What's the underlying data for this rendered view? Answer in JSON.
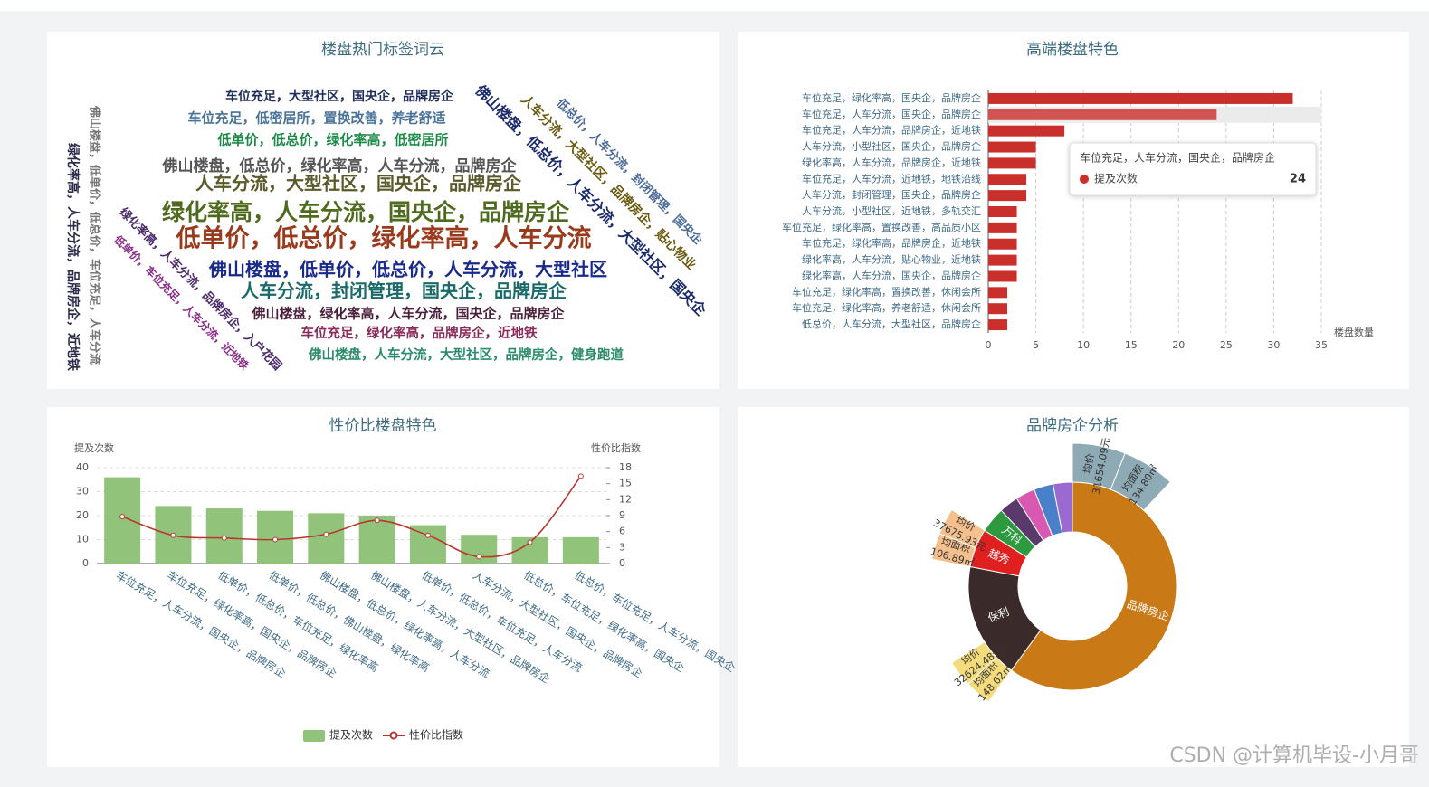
{
  "watermark": "CSDN @计算机毕设-小月哥",
  "chart_data": [
    {
      "type": "wordcloud",
      "title": "楼盘热门标签词云",
      "words": [
        {
          "text": "车位充足，大型社区，国央企，品牌房企",
          "color": "#1f2d5a"
        },
        {
          "text": "车位充足，低密居所，置换改善，养老舒适",
          "color": "#4a7399"
        },
        {
          "text": "低单价，低总价，绿化率高，低密居所",
          "color": "#1e8a4a"
        },
        {
          "text": "佛山楼盘，低总价，绿化率高，人车分流，品牌房企",
          "color": "#555555"
        },
        {
          "text": "人车分流，大型社区，国央企，品牌房企",
          "color": "#5a5a2a"
        },
        {
          "text": "绿化率高，人车分流，国央企，品牌房企",
          "color": "#4f6b1f"
        },
        {
          "text": "低单价，低总价，绿化率高，人车分流",
          "color": "#9a3a1c"
        },
        {
          "text": "佛山楼盘，低单价，低总价，人车分流，大型社区",
          "color": "#1a2a8a"
        },
        {
          "text": "人车分流，封闭管理，国央企，品牌房企",
          "color": "#1a6a6a"
        },
        {
          "text": "佛山楼盘，绿化率高，人车分流，国央企，品牌房企",
          "color": "#4a1f3a"
        },
        {
          "text": "车位充足，绿化率高，品牌房企，近地铁",
          "color": "#8a2a5a"
        },
        {
          "text": "佛山楼盘，人车分流，大型社区，品牌房企，健身跑道",
          "color": "#2a8a6a"
        },
        {
          "text": "佛山楼盘，低单价，低总价，车位充足，人车分流",
          "color": "#777777"
        },
        {
          "text": "绿化率高，人车分流，品牌房企，近地铁",
          "color": "#2a2a4a"
        },
        {
          "text": "绿化率高，人车分流，品牌房企，入户花园",
          "color": "#4a2a6a"
        },
        {
          "text": "低单价，车位充足，人车分流，近地铁",
          "color": "#8a2a8a"
        },
        {
          "text": "佛山楼盘，低总价，人车分流，大型社区，国央企",
          "color": "#1a2a6a"
        },
        {
          "text": "人车分流，大型社区，品牌房企，贴心物业",
          "color": "#6a5a10"
        },
        {
          "text": "低总价，人车分流，封闭管理，国央企",
          "color": "#4a6a9a"
        }
      ]
    },
    {
      "type": "hbar",
      "title": "高端楼盘特色",
      "categories": [
        "车位充足，绿化率高，国央企，品牌房企",
        "车位充足，人车分流，国央企，品牌房企",
        "车位充足，人车分流，品牌房企，近地铁",
        "人车分流，小型社区，国央企，品牌房企",
        "绿化率高，人车分流，品牌房企，近地铁",
        "车位充足，人车分流，近地铁，地铁沿线",
        "人车分流，封闭管理，国央企，品牌房企",
        "人车分流，小型社区，近地铁，多轨交汇",
        "车位充足，绿化率高，置换改善，高品质小区",
        "车位充足，绿化率高，品牌房企，近地铁",
        "绿化率高，人车分流，贴心物业，近地铁",
        "绿化率高，人车分流，国央企，品牌房企",
        "车位充足，绿化率高，置换改善，休闲会所",
        "车位充足，绿化率高，养老舒适，休闲会所",
        "低总价，人车分流，大型社区，品牌房企"
      ],
      "series": [
        {
          "name": "提及次数",
          "color": "#c9302c",
          "values": [
            32,
            24,
            8,
            5,
            5,
            4,
            4,
            3,
            3,
            3,
            3,
            3,
            2,
            2,
            2
          ]
        }
      ],
      "xlim": [
        0,
        35
      ],
      "xticks": [
        0,
        5,
        10,
        15,
        20,
        25,
        30,
        35
      ],
      "xlabel": "楼盘数量",
      "grid": true
    },
    {
      "type": "barline",
      "title": "性价比楼盘特色",
      "categories": [
        "车位充足，人车分流，国央企，品牌房企",
        "车位充足，绿化率高，国央企，品牌房企",
        "低单价，低总价，车位充足，绿化率高",
        "低单价，低总价，佛山楼盘，绿化率高",
        "佛山楼盘，低总价，绿化率高，人车分流",
        "佛山楼盘，人车分流，大型社区，品牌房企",
        "低单价，低总价，车位充足，人车分流",
        "人车分流，大型社区，国央企，品牌房企",
        "低总价，车位充足，绿化率高，国央企",
        "低总价，车位充足，人车分流，国央企"
      ],
      "series": [
        {
          "name": "提及次数",
          "type": "bar",
          "color": "#91c47a",
          "values": [
            36,
            24,
            23,
            22,
            21,
            20,
            16,
            12,
            11,
            11
          ]
        },
        {
          "name": "性价比指数",
          "type": "line",
          "color": "#b8372e",
          "axis": "y2",
          "values": [
            8.8,
            5.3,
            4.8,
            4.5,
            5.5,
            8.1,
            5.3,
            1.3,
            4.0,
            16.4
          ]
        }
      ],
      "ylim": [
        0,
        40
      ],
      "yticks": [
        0,
        10,
        20,
        30,
        40
      ],
      "y2lim": [
        0,
        18
      ],
      "y2ticks": [
        0,
        3,
        6,
        9,
        12,
        15,
        18
      ],
      "ylabel": "提及次数",
      "y2label": "性价比指数",
      "legend": "bottom",
      "grid": true
    },
    {
      "type": "sunburst",
      "title": "品牌房企分析",
      "data": [
        {
          "name": "品牌房企",
          "value": 60,
          "color": "#c97a16",
          "children": [
            {
              "name": "均价",
              "label": "31654.09元",
              "value": 6,
              "color": "#8eaab5"
            },
            {
              "name": "均面积",
              "label": "134.80㎡",
              "value": 6,
              "color": "#8eaab5"
            }
          ]
        },
        {
          "name": "保利",
          "value": 18,
          "color": "#3a2a2a",
          "children": [
            {
              "name": "均面积",
              "label": "148.62㎡",
              "value": 3,
              "color": "#f4dc7c"
            },
            {
              "name": "均价",
              "label": "32624.48元",
              "value": 3,
              "color": "#f4dc7c"
            }
          ]
        },
        {
          "name": "越秀",
          "value": 6,
          "color": "#e01f1f",
          "children": [
            {
              "name": "均面积",
              "label": "106.89㎡",
              "value": 3,
              "color": "#f5c08e"
            },
            {
              "name": "均价",
              "label": "37675.93元",
              "value": 3,
              "color": "#f5c08e"
            }
          ]
        },
        {
          "name": "万科",
          "value": 4,
          "color": "#2e9a3f",
          "children": []
        },
        {
          "name": null,
          "value": 3,
          "color": "#5a3a6a",
          "children": []
        },
        {
          "name": null,
          "value": 3,
          "color": "#d85ab0",
          "children": []
        },
        {
          "name": null,
          "value": 3,
          "color": "#4a7fc9",
          "children": []
        },
        {
          "name": null,
          "value": 3,
          "color": "#9a6ad0",
          "children": []
        }
      ]
    }
  ]
}
